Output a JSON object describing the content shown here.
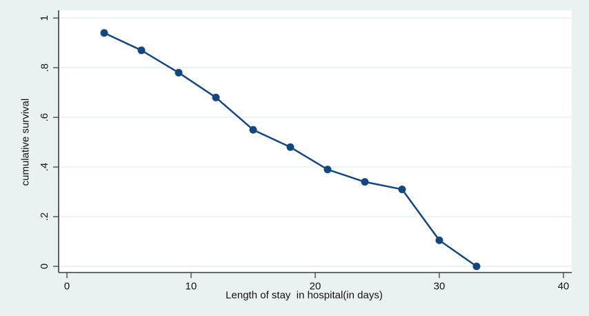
{
  "figure": {
    "background_color": "#eaf1f3",
    "plot_background_color": "#ffffff",
    "grid_color": "#e4edef",
    "axis_color": "#3a3a3a",
    "tick_color": "#4a4a4a",
    "line_color": "#14477e",
    "marker_color": "#14477e",
    "text_color": "#111111"
  },
  "chart_data": {
    "type": "line",
    "title": "",
    "xlabel": "Length of stay  in hospital(in days)",
    "ylabel": "cumulative survival",
    "x": [
      3,
      6,
      9,
      12,
      15,
      18,
      21,
      24,
      27,
      30,
      33
    ],
    "y": [
      0.94,
      0.87,
      0.78,
      0.68,
      0.55,
      0.48,
      0.39,
      0.34,
      0.31,
      0.105,
      0
    ],
    "xticks": [
      0,
      10,
      20,
      30,
      40
    ],
    "xtick_labels": [
      "0",
      "10",
      "20",
      "30",
      "40"
    ],
    "yticks": [
      0,
      0.2,
      0.4,
      0.6,
      0.8,
      1
    ],
    "ytick_labels": [
      "0",
      ".2",
      ".4",
      ".6",
      ".8",
      "1"
    ],
    "xlim": [
      -0.67,
      40.67
    ],
    "ylim": [
      -0.025,
      1.031
    ],
    "grid": "horizontal-on",
    "legend": "none",
    "marker": "filled-circle",
    "ytick_label_orientation": "vertical"
  }
}
